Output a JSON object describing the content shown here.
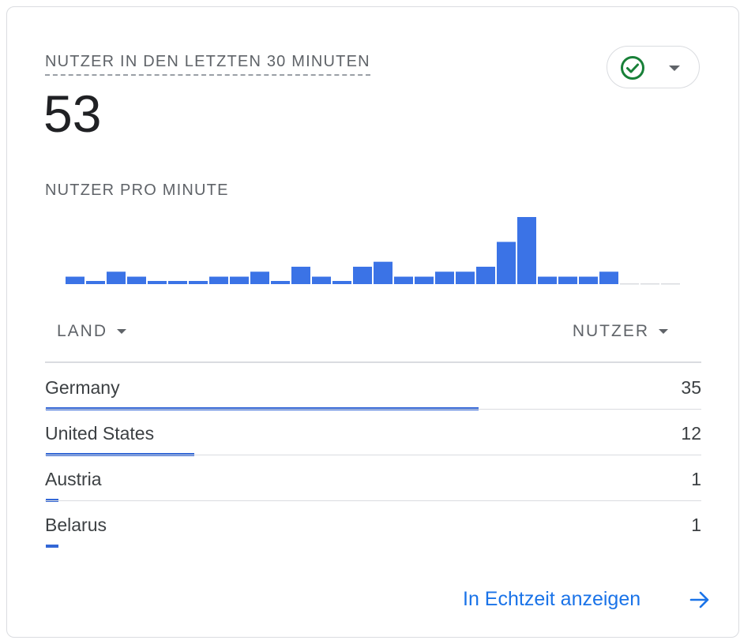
{
  "kpi": {
    "title": "NUTZER IN DEN LETZTEN 30 MINUTEN",
    "value": "53"
  },
  "status": {
    "icon": "check-circle-icon",
    "color": "#188038"
  },
  "chart_title": "NUTZER PRO MINUTE",
  "chart_data": {
    "type": "bar",
    "values": [
      3,
      1,
      5,
      3,
      1,
      1,
      1,
      3,
      3,
      5,
      1,
      7,
      3,
      1,
      7,
      9,
      3,
      3,
      5,
      5,
      7,
      17,
      27,
      3,
      3,
      3,
      5,
      0,
      0,
      0
    ],
    "ylim": [
      0,
      27
    ],
    "bar_color": "#3b73e6",
    "empty_color": "#dadce0"
  },
  "table": {
    "col_land": "LAND",
    "col_users": "NUTZER",
    "max_value": 35,
    "rows": [
      {
        "country": "Germany",
        "value": "35",
        "share": 1.0
      },
      {
        "country": "United States",
        "value": "12",
        "share": 0.343
      },
      {
        "country": "Austria",
        "value": "1",
        "share": 0.029
      },
      {
        "country": "Belarus",
        "value": "1",
        "share": 0.029
      }
    ]
  },
  "footer": {
    "link_label": "In Echtzeit anzeigen",
    "link_color": "#1a73e8"
  }
}
